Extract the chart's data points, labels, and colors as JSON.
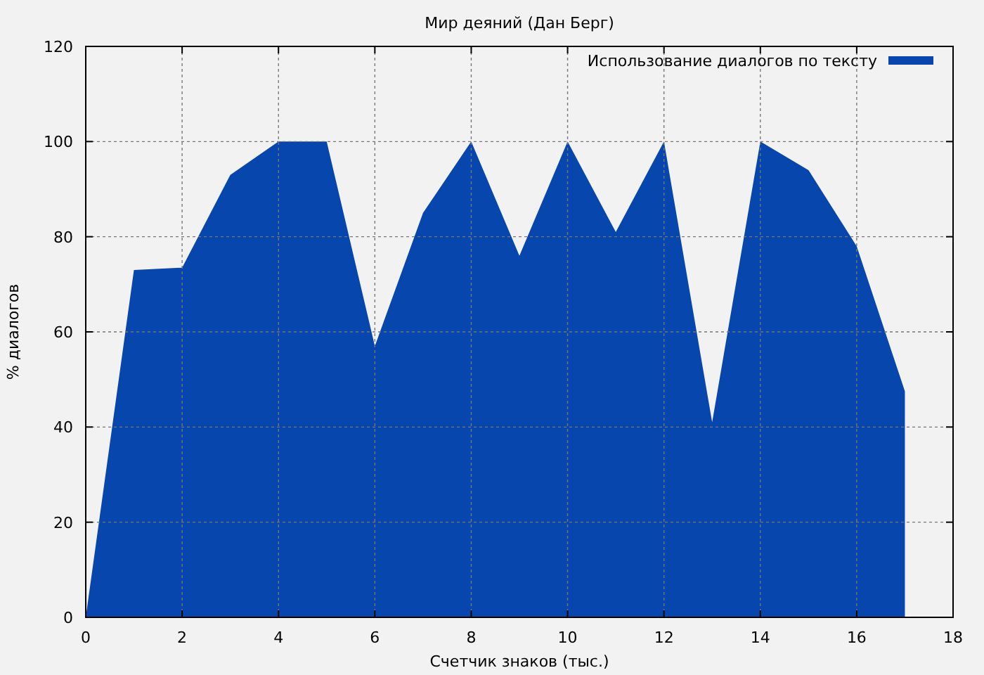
{
  "chart_data": {
    "type": "area",
    "title": "Мир деяний (Дан Берг)",
    "xlabel": "Счетчик знаков (тыс.)",
    "ylabel": "% диалогов",
    "x": [
      0,
      1,
      2,
      3,
      4,
      5,
      6,
      7,
      8,
      9,
      10,
      11,
      12,
      13,
      14,
      15,
      16,
      17
    ],
    "series": [
      {
        "name": "Использование диалогов по тексту",
        "color": "#0646ad",
        "values": [
          0,
          73,
          73.5,
          93,
          100,
          100,
          57,
          85,
          100,
          76,
          100,
          81,
          100,
          41,
          100,
          94,
          78,
          47.5
        ]
      }
    ],
    "xlim": [
      0,
      18
    ],
    "xticks": [
      0,
      2,
      4,
      6,
      8,
      10,
      12,
      14,
      16,
      18
    ],
    "ylim": [
      0,
      120
    ],
    "yticks": [
      0,
      20,
      40,
      60,
      80,
      100,
      120
    ],
    "grid": true,
    "legend": "top right"
  }
}
